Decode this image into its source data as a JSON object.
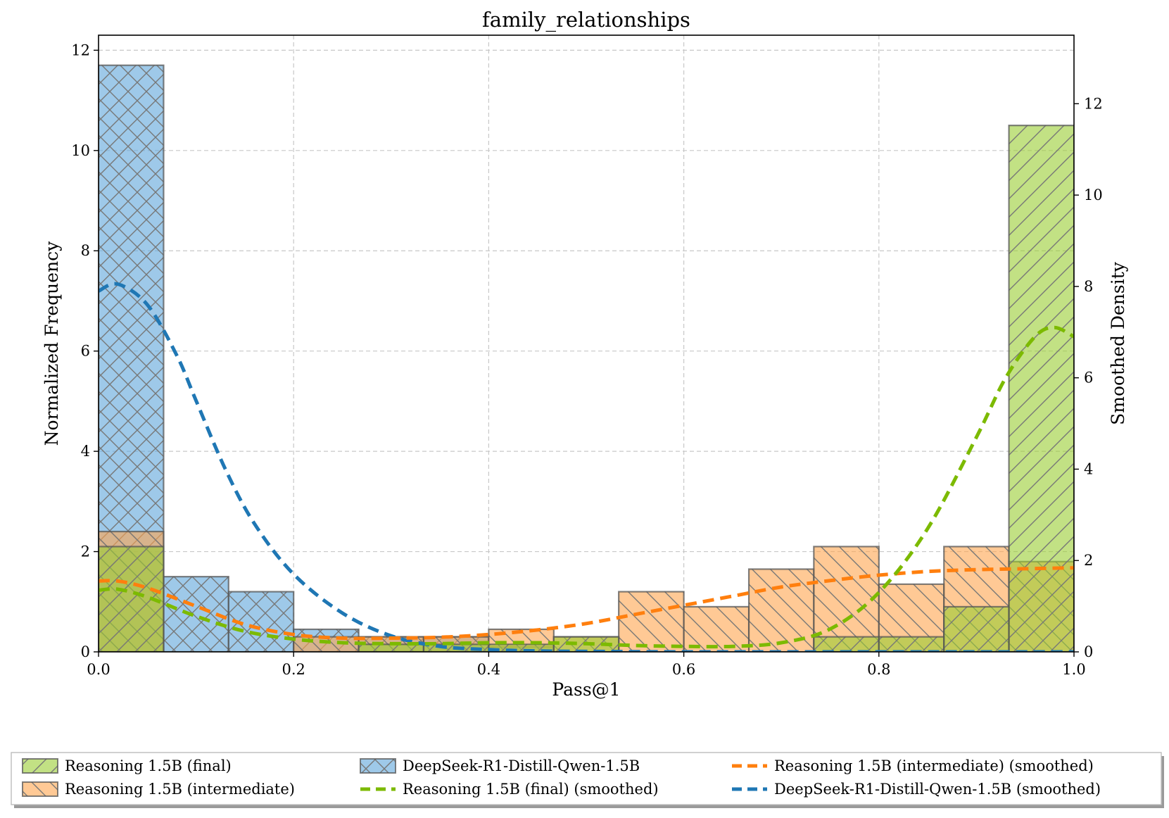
{
  "chart_data": {
    "type": "bar",
    "title": "family_relationships",
    "xlabel": "Pass@1",
    "ylabel": "Normalized Frequency",
    "y2label": "Smoothed Density",
    "xlim": [
      0.0,
      1.0
    ],
    "ylim": [
      0,
      12.3
    ],
    "y2lim": [
      0,
      13.5
    ],
    "grid": true,
    "x_ticks": [
      "0.0",
      "0.2",
      "0.4",
      "0.6",
      "0.8",
      "1.0"
    ],
    "x_tick_values": [
      0.0,
      0.2,
      0.4,
      0.6,
      0.8,
      1.0
    ],
    "y_ticks": [
      "0",
      "2",
      "4",
      "6",
      "8",
      "10",
      "12"
    ],
    "y_tick_values": [
      0,
      2,
      4,
      6,
      8,
      10,
      12
    ],
    "y2_ticks": [
      "0",
      "2",
      "4",
      "6",
      "8",
      "10",
      "12"
    ],
    "y2_tick_values": [
      0,
      2,
      4,
      6,
      8,
      10,
      12
    ],
    "bin_edges": [
      0.0,
      0.0667,
      0.1333,
      0.2,
      0.2667,
      0.3333,
      0.4,
      0.4667,
      0.5333,
      0.6,
      0.6667,
      0.7333,
      0.8,
      0.8667,
      0.9333,
      1.0
    ],
    "histograms": [
      {
        "name": "DeepSeek-R1-Distill-Qwen-1.5B",
        "color": "#5da5da",
        "hatch": "cross",
        "values": [
          11.7,
          1.5,
          1.2,
          0.45,
          0.3,
          0.3,
          0.1,
          0.0,
          0.0,
          0.0,
          0.0,
          0.0,
          0.0,
          0.0,
          0.0
        ]
      },
      {
        "name": "Reasoning 1.5B (intermediate)",
        "color": "#ffa54f",
        "hatch": "back",
        "values": [
          2.4,
          0.0,
          0.0,
          0.3,
          0.3,
          0.3,
          0.45,
          0.3,
          1.2,
          0.9,
          1.65,
          2.1,
          1.35,
          2.1,
          1.8
        ]
      },
      {
        "name": "Reasoning 1.5B (final)",
        "color": "#9acd32",
        "hatch": "forward",
        "values": [
          2.1,
          0.0,
          0.0,
          0.0,
          0.15,
          0.15,
          0.15,
          0.3,
          0.0,
          0.0,
          0.0,
          0.3,
          0.3,
          0.9,
          10.5
        ]
      }
    ],
    "smoothed": [
      {
        "name": "DeepSeek-R1-Distill-Qwen-1.5B (smoothed)",
        "color": "#1f77b4",
        "x": [
          0.0,
          0.02,
          0.05,
          0.08,
          0.1,
          0.13,
          0.16,
          0.2,
          0.25,
          0.3,
          0.35,
          0.4,
          0.45,
          0.5,
          0.6,
          0.7,
          0.8,
          0.9,
          1.0
        ],
        "y": [
          7.9,
          8.05,
          7.6,
          6.5,
          5.5,
          4.0,
          2.8,
          1.7,
          0.85,
          0.35,
          0.12,
          0.05,
          0.02,
          0.01,
          0.0,
          0.0,
          0.0,
          0.0,
          0.0
        ]
      },
      {
        "name": "Reasoning 1.5B (intermediate) (smoothed)",
        "color": "#ff7f0e",
        "x": [
          0.0,
          0.02,
          0.05,
          0.1,
          0.15,
          0.2,
          0.25,
          0.3,
          0.35,
          0.4,
          0.45,
          0.5,
          0.55,
          0.6,
          0.65,
          0.7,
          0.75,
          0.8,
          0.85,
          0.9,
          0.95,
          1.0
        ],
        "y": [
          1.55,
          1.55,
          1.4,
          1.0,
          0.6,
          0.38,
          0.3,
          0.3,
          0.32,
          0.38,
          0.48,
          0.62,
          0.82,
          1.02,
          1.22,
          1.42,
          1.56,
          1.68,
          1.76,
          1.8,
          1.82,
          1.84
        ]
      },
      {
        "name": "Reasoning 1.5B (final) (smoothed)",
        "color": "#7cba00",
        "x": [
          0.0,
          0.02,
          0.05,
          0.1,
          0.15,
          0.2,
          0.25,
          0.3,
          0.35,
          0.4,
          0.45,
          0.5,
          0.55,
          0.6,
          0.65,
          0.7,
          0.75,
          0.8,
          0.85,
          0.9,
          0.93,
          0.96,
          0.98,
          1.0
        ],
        "y": [
          1.35,
          1.37,
          1.2,
          0.78,
          0.45,
          0.28,
          0.2,
          0.18,
          0.18,
          0.2,
          0.2,
          0.18,
          0.14,
          0.12,
          0.12,
          0.2,
          0.5,
          1.3,
          2.7,
          4.7,
          6.0,
          6.9,
          7.1,
          6.9
        ]
      }
    ],
    "legend": {
      "placement": "bottom-outside",
      "entries": [
        {
          "label": "Reasoning 1.5B (final)",
          "kind": "patch",
          "color": "#9acd32",
          "hatch": "forward"
        },
        {
          "label": "Reasoning 1.5B (intermediate)",
          "kind": "patch",
          "color": "#ffa54f",
          "hatch": "back"
        },
        {
          "label": "DeepSeek-R1-Distill-Qwen-1.5B",
          "kind": "patch",
          "color": "#5da5da",
          "hatch": "cross"
        },
        {
          "label": "Reasoning 1.5B (final) (smoothed)",
          "kind": "line",
          "color": "#7cba00"
        },
        {
          "label": "Reasoning 1.5B (intermediate) (smoothed)",
          "kind": "line",
          "color": "#ff7f0e"
        },
        {
          "label": "DeepSeek-R1-Distill-Qwen-1.5B (smoothed)",
          "kind": "line",
          "color": "#1f77b4"
        }
      ]
    }
  }
}
